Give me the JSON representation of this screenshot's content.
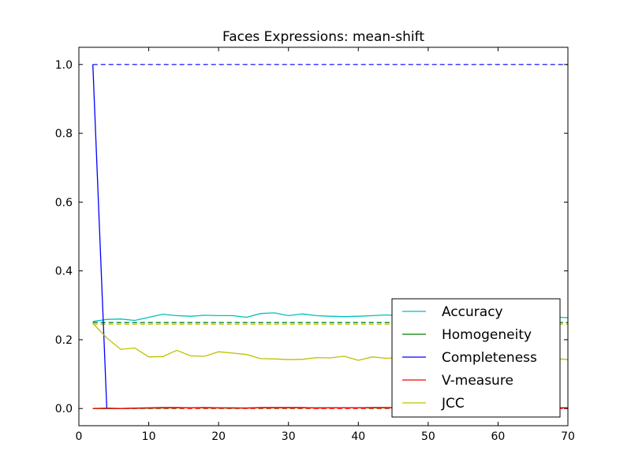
{
  "chart_data": {
    "type": "line",
    "title": "Faces Expressions: mean-shift",
    "xlabel": "",
    "ylabel": "",
    "xlim": [
      0,
      70
    ],
    "ylim": [
      -0.05,
      1.05
    ],
    "xticks": [
      0,
      10,
      20,
      30,
      40,
      50,
      60,
      70
    ],
    "yticks": [
      0.0,
      0.2,
      0.4,
      0.6,
      0.8,
      1.0
    ],
    "xtick_labels": [
      "0",
      "10",
      "20",
      "30",
      "40",
      "50",
      "60",
      "70"
    ],
    "ytick_labels": [
      "0.0",
      "0.2",
      "0.4",
      "0.6",
      "0.8",
      "1.0"
    ],
    "grid": false,
    "legend_position": "lower-right",
    "series": [
      {
        "name": "Accuracy",
        "color": "#00bfbf",
        "style": "solid",
        "x": [
          2,
          4,
          6,
          8,
          10,
          12,
          14,
          16,
          18,
          20,
          22,
          24,
          26,
          28,
          30,
          32,
          34,
          36,
          38,
          40,
          42,
          44,
          46,
          48,
          50,
          52,
          54,
          56,
          58,
          60,
          62,
          64,
          66,
          68,
          70
        ],
        "y": [
          0.253,
          0.259,
          0.26,
          0.256,
          0.265,
          0.274,
          0.27,
          0.268,
          0.271,
          0.27,
          0.27,
          0.265,
          0.276,
          0.278,
          0.27,
          0.275,
          0.27,
          0.268,
          0.267,
          0.268,
          0.27,
          0.272,
          0.27,
          0.27,
          0.27,
          0.27,
          0.27,
          0.27,
          0.27,
          0.27,
          0.268,
          0.268,
          0.267,
          0.266,
          0.264
        ]
      },
      {
        "name": "Homogeneity",
        "color": "#008000",
        "style": "solid",
        "x": [
          2,
          6,
          10,
          14,
          18,
          22,
          26,
          30,
          34,
          38,
          42,
          46,
          50,
          54,
          58,
          62,
          66,
          70
        ],
        "y": [
          0.0,
          0.0,
          0.001,
          0.002,
          0.002,
          0.001,
          0.002,
          0.002,
          0.002,
          0.002,
          0.002,
          0.002,
          0.002,
          0.002,
          0.002,
          0.002,
          0.002,
          0.002
        ]
      },
      {
        "name": "Completeness",
        "color": "#0000ff",
        "style": "solid",
        "x": [
          2,
          4
        ],
        "y": [
          1.0,
          0.0
        ]
      },
      {
        "name": "V-measure",
        "color": "#ff0000",
        "style": "solid",
        "x": [
          2,
          4,
          6,
          8,
          10,
          12,
          14,
          16,
          18,
          20,
          22,
          24,
          26,
          28,
          30,
          32,
          34,
          36,
          38,
          40,
          42,
          44,
          46,
          48,
          50,
          52,
          54,
          56,
          58,
          60,
          62,
          64,
          66,
          68,
          70
        ],
        "y": [
          0.0,
          0.001,
          0.0,
          0.001,
          0.002,
          0.003,
          0.003,
          0.002,
          0.003,
          0.002,
          0.002,
          0.001,
          0.003,
          0.003,
          0.003,
          0.003,
          0.001,
          0.002,
          0.002,
          0.002,
          0.003,
          0.003,
          0.002,
          0.002,
          0.002,
          0.002,
          0.002,
          0.002,
          0.002,
          0.002,
          0.002,
          0.002,
          0.002,
          0.002,
          0.002
        ]
      },
      {
        "name": "JCC",
        "color": "#bfbf00",
        "style": "solid",
        "x": [
          2,
          4,
          6,
          8,
          10,
          12,
          14,
          16,
          18,
          20,
          22,
          24,
          26,
          28,
          30,
          32,
          34,
          36,
          38,
          40,
          42,
          44,
          46,
          48,
          50,
          52,
          54,
          56,
          58,
          60,
          62,
          64,
          66,
          68,
          70
        ],
        "y": [
          0.248,
          0.205,
          0.172,
          0.176,
          0.15,
          0.151,
          0.169,
          0.153,
          0.152,
          0.165,
          0.161,
          0.157,
          0.145,
          0.144,
          0.142,
          0.143,
          0.148,
          0.147,
          0.152,
          0.14,
          0.15,
          0.146,
          0.148,
          0.148,
          0.148,
          0.148,
          0.148,
          0.148,
          0.148,
          0.148,
          0.148,
          0.148,
          0.148,
          0.146,
          0.142
        ]
      }
    ],
    "reference_lines": [
      {
        "color": "#0000ff",
        "style": "dashed",
        "y": 1.0
      },
      {
        "color": "#00bfbf",
        "style": "dashed",
        "y": 0.25
      },
      {
        "color": "#bfbf00",
        "style": "dashed",
        "y": 0.245
      },
      {
        "color": "#008000",
        "style": "dashed",
        "y": 0.25
      },
      {
        "color": "#ff0000",
        "style": "dashed",
        "y": 0.0
      }
    ]
  }
}
